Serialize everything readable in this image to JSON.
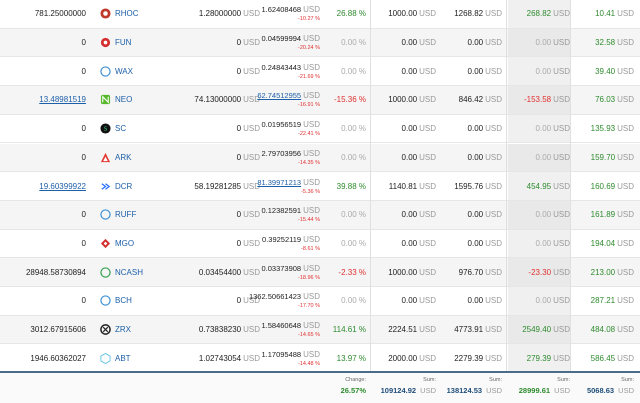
{
  "rows": [
    {
      "amount": "781.25000000",
      "amount_link": false,
      "coin": "RHOC",
      "icon": "rhoc-icon",
      "color": "#c0392b",
      "buy": "1.28000000",
      "price": "1.62408468",
      "price_link": false,
      "price_change": "-10.27 %",
      "change": "26.88 %",
      "change_class": "pos",
      "invest": "1000.00",
      "value": "1268.82",
      "profit": "268.82",
      "profit_class": "pos",
      "total": "10.41"
    },
    {
      "amount": "0",
      "amount_link": false,
      "coin": "FUN",
      "icon": "fun-icon",
      "color": "#d32f2f",
      "buy": "0",
      "price": "0.04599994",
      "price_link": false,
      "price_change": "-20.24 %",
      "change": "0.00 %",
      "change_class": "zero",
      "invest": "0.00",
      "value": "0.00",
      "profit": "0.00",
      "profit_class": "zero",
      "total": "32.58"
    },
    {
      "amount": "0",
      "amount_link": false,
      "coin": "WAX",
      "icon": "wax-icon",
      "color": "#3a8fd6",
      "buy": "0",
      "price": "0.24843443",
      "price_link": false,
      "price_change": "-21.69 %",
      "change": "0.00 %",
      "change_class": "zero",
      "invest": "0.00",
      "value": "0.00",
      "profit": "0.00",
      "profit_class": "zero",
      "total": "39.40"
    },
    {
      "amount": "13.48981519",
      "amount_link": true,
      "coin": "NEO",
      "icon": "neo-icon",
      "color": "#58b82c",
      "buy": "74.13000000",
      "price": "62.74512955",
      "price_link": true,
      "price_change": "-16.91 %",
      "change": "-15.36 %",
      "change_class": "neg",
      "invest": "1000.00",
      "value": "846.42",
      "profit": "-153.58",
      "profit_class": "neg",
      "total": "76.03"
    },
    {
      "amount": "0",
      "amount_link": false,
      "coin": "SC",
      "icon": "sc-icon",
      "color": "#1f9e5a",
      "buy": "0",
      "price": "0.01956519",
      "price_link": false,
      "price_change": "-22.41 %",
      "change": "0.00 %",
      "change_class": "zero",
      "invest": "0.00",
      "value": "0.00",
      "profit": "0.00",
      "profit_class": "zero",
      "total": "135.93"
    },
    {
      "amount": "0",
      "amount_link": false,
      "coin": "ARK",
      "icon": "ark-icon",
      "color": "#e53935",
      "buy": "0",
      "price": "2.79703956",
      "price_link": false,
      "price_change": "-14.35 %",
      "change": "0.00 %",
      "change_class": "zero",
      "invest": "0.00",
      "value": "0.00",
      "profit": "0.00",
      "profit_class": "zero",
      "total": "159.70"
    },
    {
      "amount": "19.60399922",
      "amount_link": true,
      "coin": "DCR",
      "icon": "dcr-icon",
      "color": "#2970ff",
      "buy": "58.19281285",
      "price": "81.39971213",
      "price_link": true,
      "price_change": "-5.36 %",
      "change": "39.88 %",
      "change_class": "pos",
      "invest": "1140.81",
      "value": "1595.76",
      "profit": "454.95",
      "profit_class": "pos",
      "total": "160.69"
    },
    {
      "amount": "0",
      "amount_link": false,
      "coin": "RUFF",
      "icon": "ruff-icon",
      "color": "#3a8fd6",
      "buy": "0",
      "price": "0.12382591",
      "price_link": false,
      "price_change": "-15.44 %",
      "change": "0.00 %",
      "change_class": "zero",
      "invest": "0.00",
      "value": "0.00",
      "profit": "0.00",
      "profit_class": "zero",
      "total": "161.89"
    },
    {
      "amount": "0",
      "amount_link": false,
      "coin": "MGO",
      "icon": "mgo-icon",
      "color": "#d32f2f",
      "buy": "0",
      "price": "0.39252119",
      "price_link": false,
      "price_change": "-8.61 %",
      "change": "0.00 %",
      "change_class": "zero",
      "invest": "0.00",
      "value": "0.00",
      "profit": "0.00",
      "profit_class": "zero",
      "total": "194.04"
    },
    {
      "amount": "28948.58730894",
      "amount_link": false,
      "coin": "NCASH",
      "icon": "ncash-icon",
      "color": "#2e9e4f",
      "buy": "0.03454400",
      "price": "0.03373908",
      "price_link": false,
      "price_change": "-18.96 %",
      "change": "-2.33 %",
      "change_class": "neg",
      "invest": "1000.00",
      "value": "976.70",
      "profit": "-23.30",
      "profit_class": "neg",
      "total": "213.00"
    },
    {
      "amount": "0",
      "amount_link": false,
      "coin": "BCH",
      "icon": "bch-icon",
      "color": "#3a8fd6",
      "buy": "0",
      "price": "1362.50661423",
      "price_link": false,
      "price_change": "-17.70 %",
      "change": "0.00 %",
      "change_class": "zero",
      "invest": "0.00",
      "value": "0.00",
      "profit": "0.00",
      "profit_class": "zero",
      "total": "287.21"
    },
    {
      "amount": "3012.67915606",
      "amount_link": false,
      "coin": "ZRX",
      "icon": "zrx-icon",
      "color": "#222222",
      "buy": "0.73838230",
      "price": "1.58460648",
      "price_link": false,
      "price_change": "-14.65 %",
      "change": "114.61 %",
      "change_class": "pos",
      "invest": "2224.51",
      "value": "4773.91",
      "profit": "2549.40",
      "profit_class": "pos",
      "total": "484.08"
    },
    {
      "amount": "1946.60362027",
      "amount_link": false,
      "coin": "ABT",
      "icon": "abt-icon",
      "color": "#6ec6e8",
      "buy": "1.02743054",
      "price": "1.17095488",
      "price_link": false,
      "price_change": "-14.48 %",
      "change": "13.97 %",
      "change_class": "pos",
      "invest": "2000.00",
      "value": "2279.39",
      "profit": "279.39",
      "profit_class": "pos",
      "total": "586.45"
    }
  ],
  "currency": "USD",
  "footer": {
    "change_label": "Change:",
    "change_value": "26.57%",
    "invest_label": "Sum:",
    "invest_value": "109124.92",
    "value_label": "Sum:",
    "value_value": "138124.53",
    "profit_label": "Sum:",
    "profit_value": "28999.61",
    "total_label": "Sum:",
    "total_value": "5068.63"
  }
}
